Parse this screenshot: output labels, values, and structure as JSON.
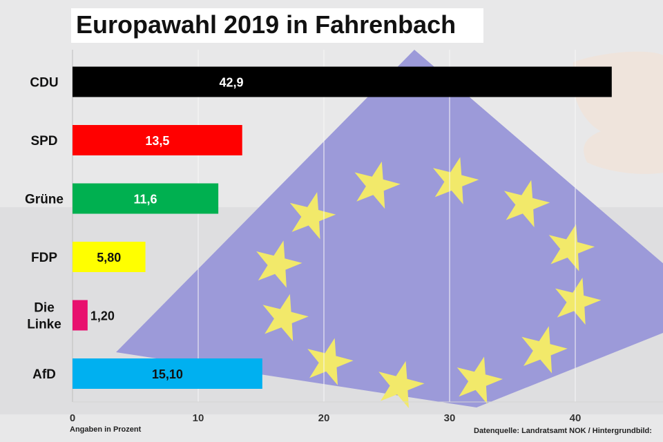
{
  "title": "Europawahl 2019 in Fahrenbach",
  "footnote_unit": "Angaben in Prozent",
  "footnote_source": "Datenquelle: Landratsamt NOK / Hintergrundbild:",
  "chart_data": {
    "type": "bar",
    "orientation": "horizontal",
    "title": "Europawahl 2019 in Fahrenbach",
    "xlabel": "Angaben in Prozent",
    "ylabel": "",
    "xlim": [
      0,
      43
    ],
    "xticks": [
      0,
      10,
      20,
      30,
      40
    ],
    "grid": true,
    "categories": [
      "CDU",
      "SPD",
      "Grüne",
      "FDP",
      "Die\nLinke",
      "AfD"
    ],
    "values": [
      42.9,
      13.5,
      11.6,
      5.8,
      1.2,
      15.1
    ],
    "value_labels": [
      "42,9",
      "13,5",
      "11,6",
      "5,80",
      "1,20",
      "15,10"
    ],
    "colors": [
      "#000000",
      "#ff0000",
      "#00b050",
      "#ffff00",
      "#e8106e",
      "#00b0f0"
    ],
    "label_colors": [
      "#ffffff",
      "#ffffff",
      "#ffffff",
      "#111111",
      "#111111",
      "#111111"
    ]
  }
}
